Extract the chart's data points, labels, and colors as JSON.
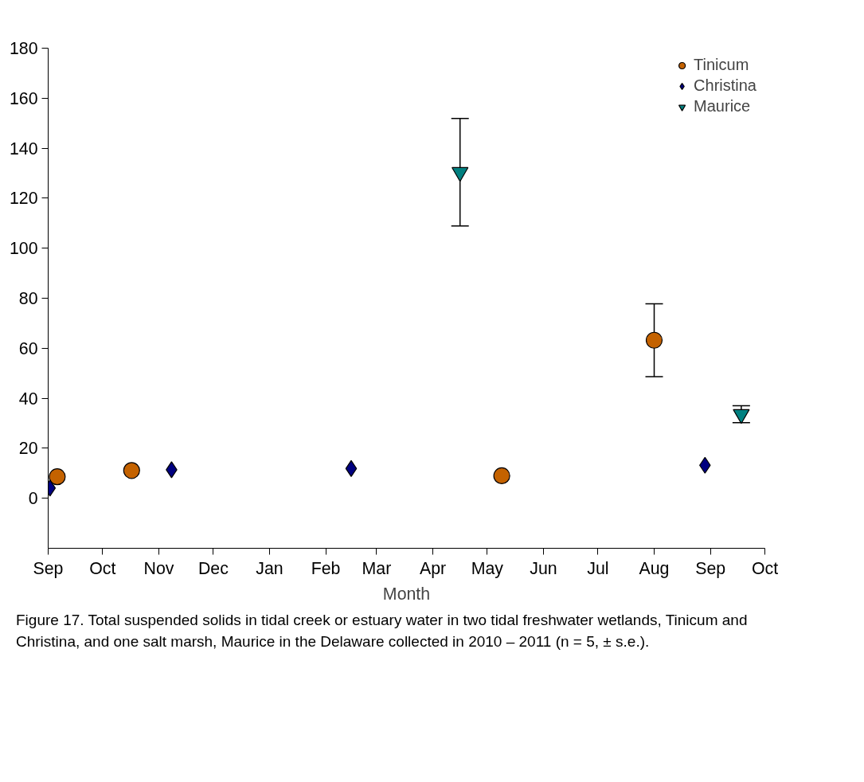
{
  "chart_data": {
    "type": "scatter",
    "xlabel": "Month",
    "xlim": [
      "2010-09-01",
      "2011-10-01"
    ],
    "xticks": [
      {
        "value": "2010-09-01",
        "label": "Sep"
      },
      {
        "value": "2010-10-01",
        "label": "Oct"
      },
      {
        "value": "2010-11-01",
        "label": "Nov"
      },
      {
        "value": "2010-12-01",
        "label": "Dec"
      },
      {
        "value": "2011-01-01",
        "label": "Jan"
      },
      {
        "value": "2011-02-01",
        "label": "Feb"
      },
      {
        "value": "2011-03-01",
        "label": "Mar"
      },
      {
        "value": "2011-04-01",
        "label": "Apr"
      },
      {
        "value": "2011-05-01",
        "label": "May"
      },
      {
        "value": "2011-06-01",
        "label": "Jun"
      },
      {
        "value": "2011-07-01",
        "label": "Jul"
      },
      {
        "value": "2011-08-01",
        "label": "Aug"
      },
      {
        "value": "2011-09-01",
        "label": "Sep"
      },
      {
        "value": "2011-10-01",
        "label": "Oct"
      }
    ],
    "ylim": [
      -20,
      180
    ],
    "yticks": [
      0,
      20,
      40,
      60,
      80,
      100,
      120,
      140,
      160,
      180
    ],
    "grid": false,
    "legend": "top right",
    "series": [
      {
        "name": "Tinicum",
        "color": "#c46200",
        "marker": "circle",
        "x": [
          "2010-09-06",
          "2010-10-17",
          "2011-05-09",
          "2011-08-01"
        ],
        "values": [
          8.6,
          11.1,
          9.0,
          63.2
        ],
        "errors": [
          null,
          null,
          null,
          14.6
        ]
      },
      {
        "name": "Christina",
        "color": "#000080",
        "marker": "diamond",
        "x": [
          "2010-09-02",
          "2010-11-08",
          "2011-02-15",
          "2011-08-29"
        ],
        "values": [
          4.1,
          11.4,
          11.9,
          13.2
        ]
      },
      {
        "name": "Maurice",
        "color": "#008080",
        "marker": "triangle",
        "x": [
          "2011-04-16",
          "2011-09-18"
        ],
        "values": [
          130.4,
          33.6
        ],
        "errors": [
          21.5,
          3.4
        ]
      }
    ],
    "annotations": [
      "Figure 17. Total suspended solids in tidal creek or estuary water in two tidal freshwater wetlands, Tinicum and Christina, and one salt marsh, Maurice in the Delaware collected in 2010 – 2011 (n = 5, ± s.e.)."
    ]
  }
}
